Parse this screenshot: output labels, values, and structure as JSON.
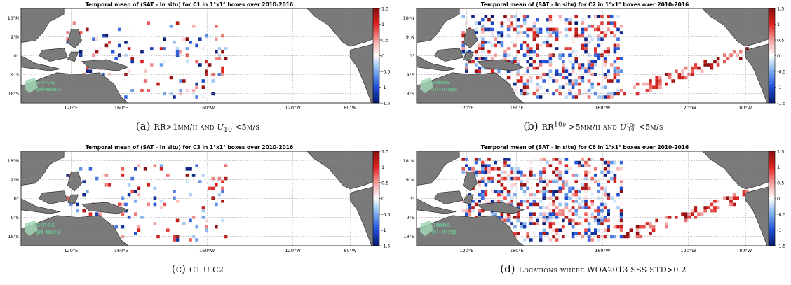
{
  "figure": {
    "colorbar": {
      "ticks": [
        "1.5",
        "1",
        "0.5",
        "0",
        "-0.5",
        "-1",
        "-1.5"
      ],
      "range": [
        -1.5,
        1.5
      ],
      "colors": [
        "#0a1a6e",
        "#1f4fd8",
        "#8fbdf0",
        "#ffffff",
        "#f7b3b3",
        "#e0231f",
        "#8b0f0f"
      ]
    },
    "lat_labels": [
      "18°N",
      "9°N",
      "0°",
      "9°S",
      "18°S"
    ],
    "lon_labels": [
      "120°E",
      "160°E",
      "160°W",
      "120°W",
      "80°W"
    ],
    "logo": {
      "line1": "smos",
      "line2": "pi-mep"
    },
    "panels": [
      {
        "id": "a",
        "title": "Temporal mean of (SAT - In situ) for C1 in 1°x1° boxes over 2010-2016",
        "caption_label": "(a)",
        "caption_parts": [
          "RR>1mm/h and ",
          "U",
          "10",
          " <5m/s"
        ],
        "density": 0.12,
        "seed": 11,
        "extent": "west"
      },
      {
        "id": "b",
        "title": "Temporal mean of (SAT - In situ) for C2 in 1°x1° boxes over 2010-2016",
        "caption_label": "(b)",
        "caption_parts": [
          "RR",
          "10d",
          " >5mm/h and ",
          "U",
          "10d",
          "10",
          " <5m/s"
        ],
        "density": 0.4,
        "seed": 23,
        "extent": "wide"
      },
      {
        "id": "c",
        "title": "Temporal mean of (SAT - In situ) for C3 in 1°x1° boxes over 2010-2016",
        "caption_label": "(c)",
        "caption_parts": [
          "C1 U C2"
        ],
        "density": 0.1,
        "seed": 37,
        "extent": "west"
      },
      {
        "id": "d",
        "title": "Temporal mean of (SAT - In situ) for C6 in 1°x1° boxes over 2010-2016",
        "caption_label": "(d)",
        "caption_parts": [
          "Locations where WOA2013 SSS STD>0.2"
        ],
        "density": 0.42,
        "seed": 51,
        "extent": "wide"
      }
    ]
  }
}
